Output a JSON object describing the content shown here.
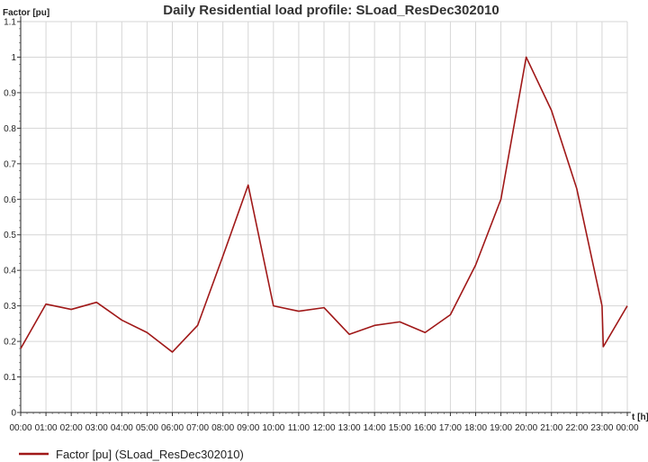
{
  "chart_data": {
    "type": "line",
    "title": "Daily Residential load profile: SLoad_ResDec302010",
    "ylabel": "Factor [pu]",
    "xlabel": "t [h]",
    "ylim": [
      0,
      1.1
    ],
    "yticks": [
      "0",
      "0.1",
      "0.2",
      "0.3",
      "0.4",
      "0.5",
      "0.6",
      "0.7",
      "0.8",
      "0.9",
      "1",
      "1.1"
    ],
    "categories": [
      "00:00",
      "01:00",
      "02:00",
      "03:00",
      "04:00",
      "05:00",
      "06:00",
      "07:00",
      "08:00",
      "09:00",
      "10:00",
      "11:00",
      "12:00",
      "13:00",
      "14:00",
      "15:00",
      "16:00",
      "17:00",
      "18:00",
      "19:00",
      "20:00",
      "21:00",
      "22:00",
      "23:00",
      "00:00"
    ],
    "x": [
      0,
      1,
      2,
      3,
      4,
      5,
      6,
      7,
      8,
      9,
      10,
      11,
      12,
      13,
      14,
      15,
      16,
      17,
      18,
      19,
      20,
      21,
      22,
      23,
      23.05,
      24
    ],
    "grid": true,
    "legend_position": "bottom-left",
    "series": [
      {
        "name": "Factor [pu] (SLoad_ResDec302010)",
        "color": "#a01818",
        "values": [
          0.18,
          0.305,
          0.29,
          0.31,
          0.26,
          0.225,
          0.17,
          0.245,
          0.44,
          0.64,
          0.3,
          0.285,
          0.295,
          0.22,
          0.245,
          0.255,
          0.225,
          0.275,
          0.415,
          0.6,
          1.0,
          0.85,
          0.63,
          0.3,
          0.185,
          0.3
        ]
      }
    ]
  }
}
